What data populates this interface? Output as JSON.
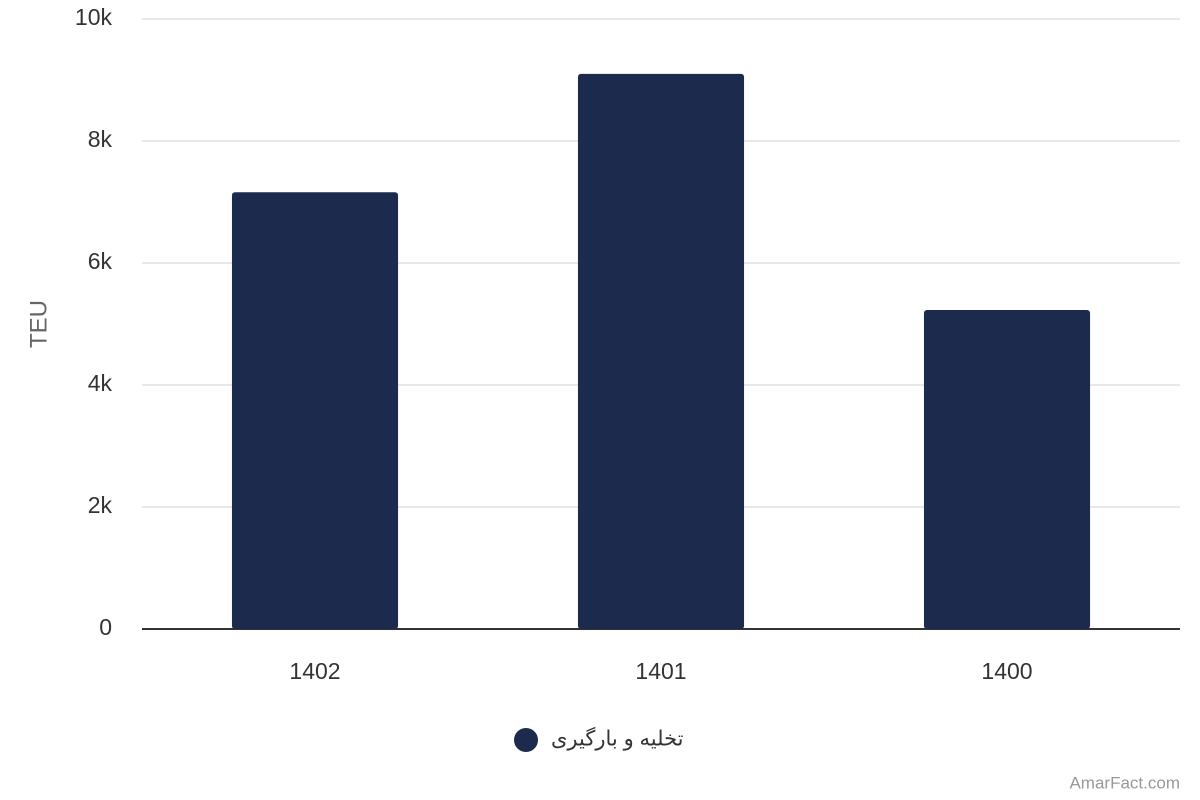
{
  "chart_data": {
    "type": "bar",
    "y_label": "TEU",
    "categories": [
      "1402",
      "1401",
      "1400"
    ],
    "series": [
      {
        "name": "تخلیه و بارگیری",
        "color": "#1c2b4d",
        "values": [
          7160,
          9100,
          5230
        ]
      }
    ],
    "ylim": [
      0,
      10000
    ],
    "yticks": [
      0,
      {
        "value": 2000,
        "label": "2k"
      },
      {
        "value": 4000,
        "label": "4k"
      },
      {
        "value": 6000,
        "label": "6k"
      },
      {
        "value": 8000,
        "label": "8k"
      },
      {
        "value": 10000,
        "label": "10k"
      }
    ],
    "grid": true,
    "credit": "AmarFact.com"
  }
}
